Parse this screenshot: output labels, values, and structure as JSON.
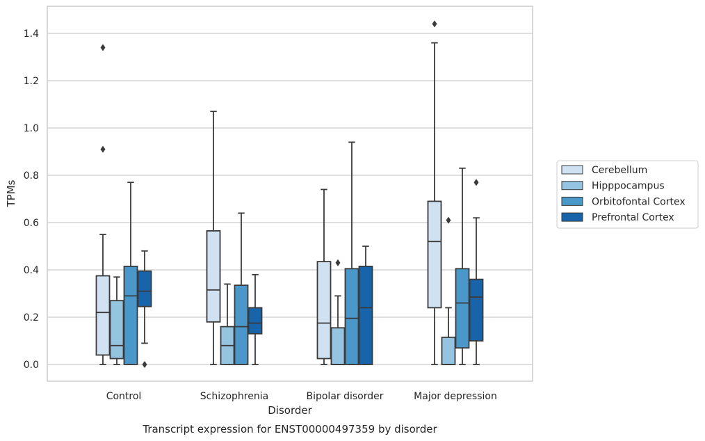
{
  "chart_data": {
    "type": "box",
    "title": "",
    "caption": "Transcript expression for ENST00000497359 by disorder",
    "xlabel": "Disorder",
    "ylabel": "TPMs",
    "ylim": [
      -0.07,
      1.52
    ],
    "yticks": [
      0.0,
      0.2,
      0.4,
      0.6,
      0.8,
      1.0,
      1.2,
      1.4
    ],
    "ytick_labels": [
      "0.0",
      "0.2",
      "0.4",
      "0.6",
      "0.8",
      "1.0",
      "1.2",
      "1.4"
    ],
    "grid": "horizontal",
    "legend_position": "right",
    "categories": [
      "Control",
      "Schizophrenia",
      "Bipolar disorder",
      "Major depression"
    ],
    "series": [
      {
        "name": "Cerebellum",
        "color": "#d0e1f2",
        "boxes": [
          {
            "whislo": 0.0,
            "q1": 0.04,
            "med": 0.22,
            "q3": 0.375,
            "whishi": 0.55,
            "fliers": [
              0.91,
              1.34
            ]
          },
          {
            "whislo": 0.0,
            "q1": 0.18,
            "med": 0.315,
            "q3": 0.565,
            "whishi": 1.07,
            "fliers": []
          },
          {
            "whislo": 0.0,
            "q1": 0.025,
            "med": 0.175,
            "q3": 0.435,
            "whishi": 0.74,
            "fliers": []
          },
          {
            "whislo": 0.0,
            "q1": 0.24,
            "med": 0.52,
            "q3": 0.69,
            "whishi": 1.36,
            "fliers": [
              1.44
            ]
          }
        ]
      },
      {
        "name": "Hipppocampus",
        "color": "#94c4df",
        "boxes": [
          {
            "whislo": 0.0,
            "q1": 0.025,
            "med": 0.08,
            "q3": 0.27,
            "whishi": 0.37,
            "fliers": []
          },
          {
            "whislo": 0.0,
            "q1": 0.0,
            "med": 0.08,
            "q3": 0.16,
            "whishi": 0.34,
            "fliers": []
          },
          {
            "whislo": 0.0,
            "q1": 0.0,
            "med": 0.0,
            "q3": 0.155,
            "whishi": 0.29,
            "fliers": [
              0.43
            ]
          },
          {
            "whislo": 0.0,
            "q1": 0.0,
            "med": 0.0,
            "q3": 0.115,
            "whishi": 0.24,
            "fliers": [
              0.61
            ]
          }
        ]
      },
      {
        "name": "Orbitofontal Cortex",
        "color": "#4a98c9",
        "boxes": [
          {
            "whislo": 0.0,
            "q1": 0.0,
            "med": 0.29,
            "q3": 0.415,
            "whishi": 0.77,
            "fliers": []
          },
          {
            "whislo": 0.0,
            "q1": 0.0,
            "med": 0.16,
            "q3": 0.335,
            "whishi": 0.64,
            "fliers": []
          },
          {
            "whislo": 0.0,
            "q1": 0.0,
            "med": 0.195,
            "q3": 0.405,
            "whishi": 0.94,
            "fliers": []
          },
          {
            "whislo": 0.0,
            "q1": 0.07,
            "med": 0.26,
            "q3": 0.405,
            "whishi": 0.83,
            "fliers": []
          }
        ]
      },
      {
        "name": "Prefrontal Cortex",
        "color": "#1764ab",
        "boxes": [
          {
            "whislo": 0.09,
            "q1": 0.245,
            "med": 0.31,
            "q3": 0.395,
            "whishi": 0.48,
            "fliers": [
              0.0
            ]
          },
          {
            "whislo": 0.0,
            "q1": 0.13,
            "med": 0.175,
            "q3": 0.24,
            "whishi": 0.38,
            "fliers": []
          },
          {
            "whislo": 0.0,
            "q1": 0.0,
            "med": 0.24,
            "q3": 0.415,
            "whishi": 0.5,
            "fliers": []
          },
          {
            "whislo": 0.0,
            "q1": 0.1,
            "med": 0.285,
            "q3": 0.36,
            "whishi": 0.62,
            "fliers": [
              0.77
            ]
          }
        ]
      }
    ]
  }
}
